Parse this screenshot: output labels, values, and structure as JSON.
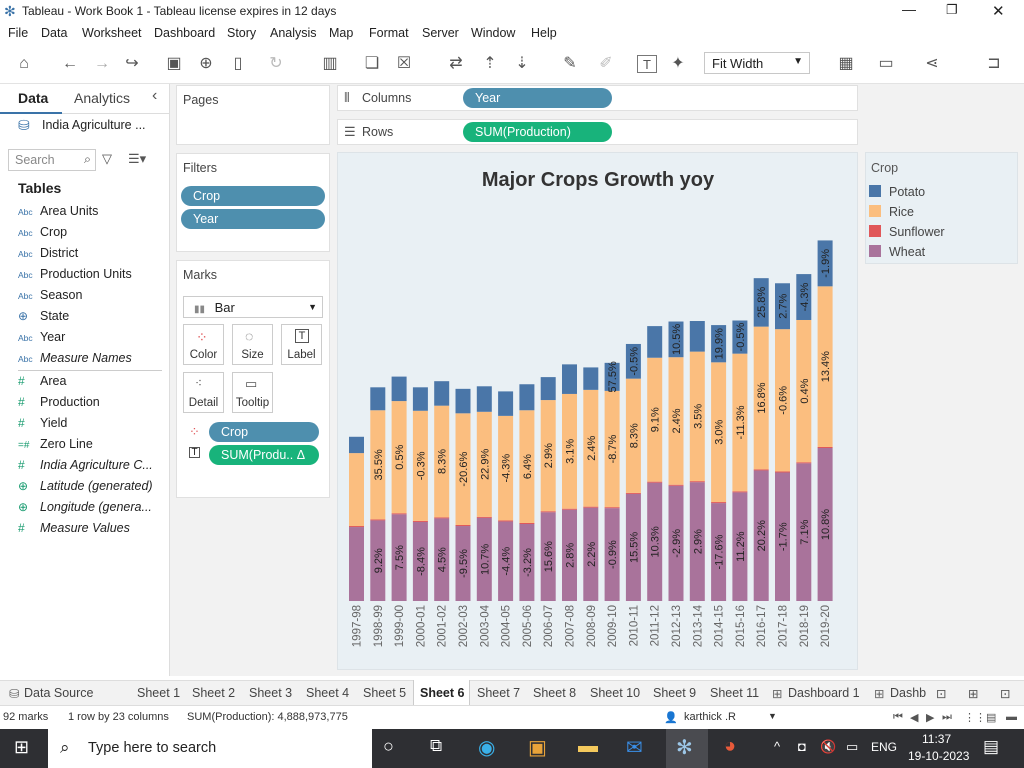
{
  "window": {
    "title": "Tableau - Work Book 1 - Tableau license expires in 12 days",
    "controls": [
      "—",
      "❐",
      "✕"
    ]
  },
  "menu": [
    "File",
    "Data",
    "Worksheet",
    "Dashboard",
    "Story",
    "Analysis",
    "Map",
    "Format",
    "Server",
    "Window",
    "Help"
  ],
  "toolbar": {
    "fit_label": "Fit Width"
  },
  "left_panel": {
    "tabs": [
      "Data",
      "Analytics"
    ],
    "datasource": "India Agriculture ...",
    "search_placeholder": "Search",
    "tables_heading": "Tables",
    "dimensions": [
      {
        "type": "Abc",
        "name": "Area Units"
      },
      {
        "type": "Abc",
        "name": "Crop"
      },
      {
        "type": "Abc",
        "name": "District"
      },
      {
        "type": "Abc",
        "name": "Production Units"
      },
      {
        "type": "Abc",
        "name": "Season"
      },
      {
        "type": "globe",
        "name": "State"
      },
      {
        "type": "Abc",
        "name": "Year"
      },
      {
        "type": "Abc",
        "name": "Measure Names"
      }
    ],
    "measures": [
      {
        "type": "#",
        "name": "Area"
      },
      {
        "type": "#",
        "name": "Production"
      },
      {
        "type": "#",
        "name": "Yield"
      },
      {
        "type": "=#",
        "name": "Zero Line"
      },
      {
        "type": "#",
        "name": "India Agriculture C..."
      },
      {
        "type": "globe",
        "name": "Latitude (generated)"
      },
      {
        "type": "globe",
        "name": "Longitude (genera..."
      },
      {
        "type": "#",
        "name": "Measure Values"
      }
    ]
  },
  "shelves": {
    "pages": "Pages",
    "filters": "Filters",
    "filter_pills": [
      "Crop",
      "Year"
    ],
    "marks": "Marks",
    "mark_type": "Bar",
    "mark_buttons": [
      "Color",
      "Size",
      "Label",
      "Detail",
      "Tooltip"
    ],
    "mark_pills": [
      "Crop",
      "SUM(Produ.. Δ"
    ],
    "columns_label": "Columns",
    "columns_pill": "Year",
    "rows_label": "Rows",
    "rows_pill": "SUM(Production)"
  },
  "legend": {
    "title": "Crop",
    "items": [
      {
        "name": "Potato",
        "color": "#4a76a8"
      },
      {
        "name": "Rice",
        "color": "#fbbe7f"
      },
      {
        "name": "Sunflower",
        "color": "#e05759"
      },
      {
        "name": "Wheat",
        "color": "#a9739b"
      }
    ]
  },
  "chart_data": {
    "type": "bar",
    "stacked": true,
    "title": "Major Crops Growth yoy",
    "categories": [
      "1997-98",
      "1998-99",
      "1999-00",
      "2000-01",
      "2001-02",
      "2002-03",
      "2003-04",
      "2004-05",
      "2005-06",
      "2006-07",
      "2007-08",
      "2008-09",
      "2009-10",
      "2010-11",
      "2011-12",
      "2012-13",
      "2013-14",
      "2014-15",
      "2015-16",
      "2016-17",
      "2017-18",
      "2018-19",
      "2019-20"
    ],
    "series": [
      {
        "name": "Wheat",
        "color": "#a9739b",
        "values": [
          1.45,
          1.58,
          1.7,
          1.55,
          1.62,
          1.47,
          1.63,
          1.56,
          1.51,
          1.74,
          1.79,
          1.83,
          1.82,
          2.1,
          2.32,
          2.26,
          2.33,
          1.92,
          2.13,
          2.56,
          2.52,
          2.7,
          3.0
        ],
        "labels": [
          "",
          "9.2%",
          "7.5%",
          "-8.4%",
          "4.5%",
          "-9.5%",
          "10.7%",
          "-4.4%",
          "-3.2%",
          "15.6%",
          "2.8%",
          "2.2%",
          "-0.9%",
          "15.5%",
          "10.3%",
          "-2.9%",
          "2.9%",
          "-17.6%",
          "11.2%",
          "20.2%",
          "-1.7%",
          "7.1%",
          "10.8%"
        ]
      },
      {
        "name": "Sunflower",
        "color": "#e05759",
        "values": [
          0.02,
          0.02,
          0.02,
          0.02,
          0.02,
          0.02,
          0.02,
          0.02,
          0.02,
          0.02,
          0.02,
          0.02,
          0.02,
          0.02,
          0.02,
          0.02,
          0.02,
          0.02,
          0.02,
          0.02,
          0.02,
          0.02,
          0.02
        ],
        "labels": []
      },
      {
        "name": "Rice",
        "color": "#fbbe7f",
        "values": [
          1.43,
          2.14,
          2.2,
          2.16,
          2.19,
          2.19,
          2.06,
          2.05,
          2.21,
          2.18,
          2.25,
          2.29,
          2.28,
          2.24,
          2.43,
          2.5,
          2.54,
          2.74,
          2.7,
          2.8,
          2.79,
          2.79,
          3.15
        ],
        "labels": [
          "",
          "35.5%",
          "0.5%",
          "-0.3%",
          "8.3%",
          "-20.6%",
          "22.9%",
          "-4.3%",
          "6.4%",
          "2.9%",
          "3.1%",
          "2.4%",
          "-8.7%",
          "8.3%",
          "9.1%",
          "2.4%",
          "3.5%",
          "3.0%",
          "-11.3%",
          "16.8%",
          "-0.6%",
          "0.4%",
          "13.4%"
        ]
      },
      {
        "name": "Potato",
        "color": "#4a76a8",
        "values": [
          0.32,
          0.45,
          0.48,
          0.46,
          0.48,
          0.48,
          0.5,
          0.48,
          0.51,
          0.45,
          0.58,
          0.44,
          0.55,
          0.68,
          0.62,
          0.7,
          0.6,
          0.73,
          0.65,
          0.95,
          0.9,
          0.9,
          0.9
        ],
        "labels": [
          "",
          "",
          "",
          "",
          "",
          "",
          "",
          "",
          "",
          "",
          "",
          "",
          "57.5%",
          "-0.5%",
          "",
          "10.5%",
          "",
          "19.9%",
          "-0.5%",
          "25.8%",
          "2.7%",
          "-4.3%",
          "-1.9%"
        ]
      }
    ],
    "ylabel": "",
    "ylim": [
      0,
      8
    ]
  },
  "sheet_tabs": {
    "datasource": "Data Source",
    "tabs": [
      "Sheet 1",
      "Sheet 2",
      "Sheet 3",
      "Sheet 4",
      "Sheet 5",
      "Sheet 6",
      "Sheet 7",
      "Sheet 8",
      "Sheet 10",
      "Sheet 9",
      "Sheet 11",
      "Dashboard 1",
      "Dashb"
    ],
    "active": "Sheet 6"
  },
  "status": {
    "marks": "92 marks",
    "dims": "1 row by 23 columns",
    "sum": "SUM(Production): 4,888,973,775",
    "user": "karthick .R"
  },
  "taskbar": {
    "search_placeholder": "Type here to search",
    "lang": "ENG",
    "time": "11:37",
    "date": "19-10-2023"
  }
}
